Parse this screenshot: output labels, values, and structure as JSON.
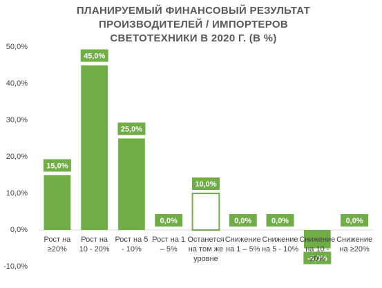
{
  "chart_data": {
    "type": "bar",
    "title": "ПЛАНИРУЕМЫЙ ФИНАНСОВЫЙ РЕЗУЛЬТАТ ПРОИЗВОДИТЕЛЕЙ / ИМПОРТЕРОВ СВЕТОТЕХНИКИ В 2020 Г. (В %)",
    "categories": [
      "Рост на ≥20%",
      "Рост на 10 - 20%",
      "Рост на 5 - 10%",
      "Рост на 1 – 5%",
      "Останется на том же уровне",
      "Снижение на 1 – 5%",
      "Снижение на 5 - 10%",
      "Снижение на 10 - 20%",
      "Снижение на ≥20%"
    ],
    "values": [
      15,
      45,
      25,
      0,
      10,
      0,
      0,
      -5,
      0
    ],
    "value_labels": [
      "15,0%",
      "45,0%",
      "25,0%",
      "0,0%",
      "10,0%",
      "0,0%",
      "0,0%",
      "-5,0%",
      "0,0%"
    ],
    "color": "#70ad47",
    "colors": [
      "#70ad47",
      "#70ad47",
      "#70ad47",
      "#70ad47",
      "#ffffff",
      "#70ad47",
      "#70ad47",
      "#70ad47",
      "#70ad47"
    ],
    "ylim": [
      -10,
      50
    ],
    "yticks": [
      {
        "value": -10,
        "label": "-10,0%"
      },
      {
        "value": 0,
        "label": "0,0%"
      },
      {
        "value": 10,
        "label": "10,0%"
      },
      {
        "value": 20,
        "label": "20,0%"
      },
      {
        "value": 30,
        "label": "30,0%"
      },
      {
        "value": 40,
        "label": "40,0%"
      },
      {
        "value": 50,
        "label": "50,0%"
      }
    ],
    "grid": false
  }
}
